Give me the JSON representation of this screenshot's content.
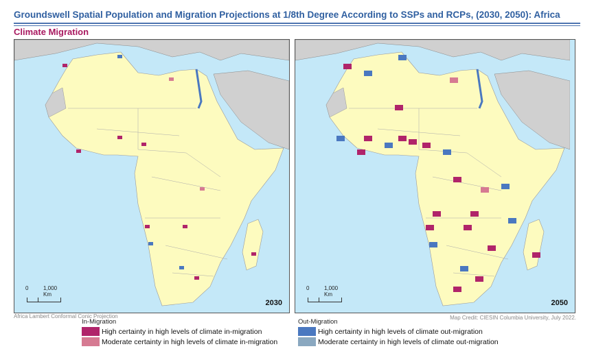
{
  "header": {
    "title": "Groundswell Spatial Population and Migration Projections at 1/8th Degree According to SSPs and RCPs, (2030, 2050): Africa",
    "subtitle": "Climate Migration"
  },
  "maps": [
    {
      "year": "2030",
      "scale_zero": "0",
      "scale_label": "1,000 Km"
    },
    {
      "year": "2050",
      "scale_zero": "0",
      "scale_label": "1,000 Km"
    }
  ],
  "projection": "Africa Lambert Conformal Conic Projection",
  "credit": "Map Credit: CIESIN Columbia University, July 2022.",
  "legend": {
    "in_title": "In-Migration",
    "in_items": [
      {
        "label": "High certainty in high levels of climate in-migration",
        "color": "#b0246a"
      },
      {
        "label": "Moderate certainty in high levels of climate in-migration",
        "color": "#d67a92"
      }
    ],
    "out_title": "Out-Migration",
    "out_items": [
      {
        "label": "High certainty in high levels of climate out-migration",
        "color": "#4a78c0"
      },
      {
        "label": "Moderate certainty in high levels of climate out-migration",
        "color": "#8aa8c0"
      }
    ]
  },
  "colors": {
    "ocean": "#c4e8f8",
    "land": "#fdfbbf",
    "other_land": "#d0d0d0"
  }
}
